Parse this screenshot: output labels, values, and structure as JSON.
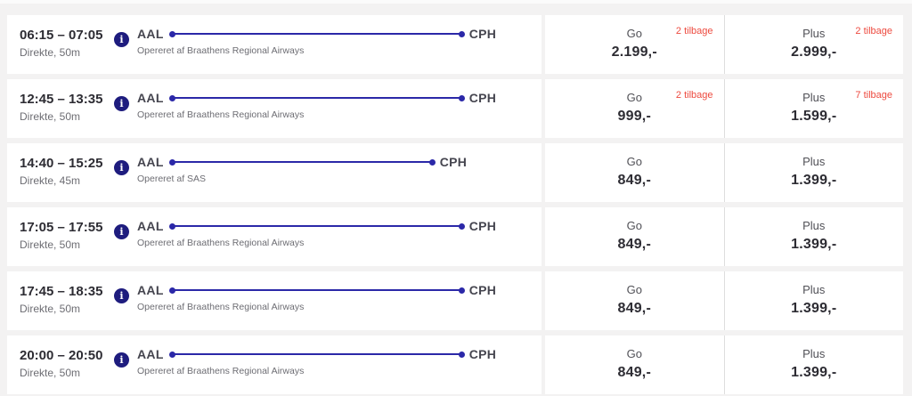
{
  "colors": {
    "brand_blue": "#2b28a8",
    "info_icon_blue": "#1e1c7e",
    "availability_red": "#ed4a3f"
  },
  "fare_labels": {
    "go": "Go",
    "plus": "Plus"
  },
  "info_icon_glyph": "i",
  "flights": [
    {
      "time": "06:15 – 07:05",
      "details": "Direkte, 50m",
      "duration_min": 50,
      "origin": "AAL",
      "destination": "CPH",
      "operator": "Opereret af Braathens Regional Airways",
      "go": {
        "price": "2.199,-",
        "availability": "2 tilbage"
      },
      "plus": {
        "price": "2.999,-",
        "availability": "2 tilbage"
      }
    },
    {
      "time": "12:45 – 13:35",
      "details": "Direkte, 50m",
      "duration_min": 50,
      "origin": "AAL",
      "destination": "CPH",
      "operator": "Opereret af Braathens Regional Airways",
      "go": {
        "price": "999,-",
        "availability": "2 tilbage"
      },
      "plus": {
        "price": "1.599,-",
        "availability": "7 tilbage"
      }
    },
    {
      "time": "14:40 – 15:25",
      "details": "Direkte, 45m",
      "duration_min": 45,
      "origin": "AAL",
      "destination": "CPH",
      "operator": "Opereret af SAS",
      "go": {
        "price": "849,-",
        "availability": ""
      },
      "plus": {
        "price": "1.399,-",
        "availability": ""
      }
    },
    {
      "time": "17:05 – 17:55",
      "details": "Direkte, 50m",
      "duration_min": 50,
      "origin": "AAL",
      "destination": "CPH",
      "operator": "Opereret af Braathens Regional Airways",
      "go": {
        "price": "849,-",
        "availability": ""
      },
      "plus": {
        "price": "1.399,-",
        "availability": ""
      }
    },
    {
      "time": "17:45 – 18:35",
      "details": "Direkte, 50m",
      "duration_min": 50,
      "origin": "AAL",
      "destination": "CPH",
      "operator": "Opereret af Braathens Regional Airways",
      "go": {
        "price": "849,-",
        "availability": ""
      },
      "plus": {
        "price": "1.399,-",
        "availability": ""
      }
    },
    {
      "time": "20:00 – 20:50",
      "details": "Direkte, 50m",
      "duration_min": 50,
      "origin": "AAL",
      "destination": "CPH",
      "operator": "Opereret af Braathens Regional Airways",
      "go": {
        "price": "849,-",
        "availability": ""
      },
      "plus": {
        "price": "1.399,-",
        "availability": ""
      }
    }
  ]
}
